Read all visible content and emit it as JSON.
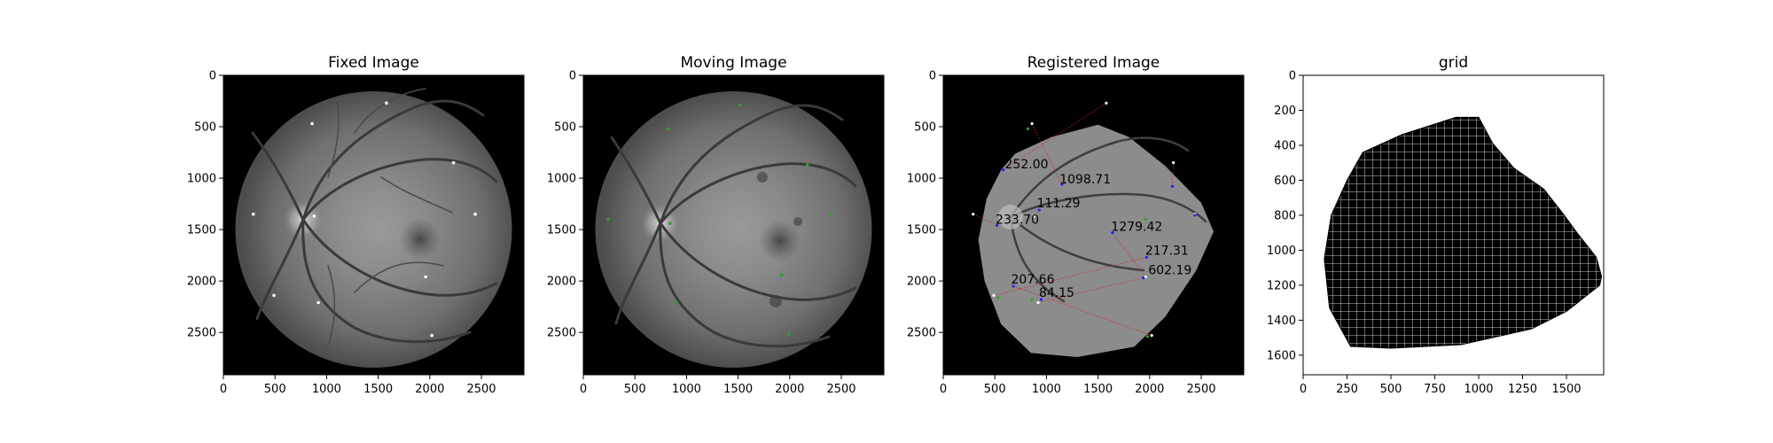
{
  "chart_data": [
    {
      "type": "image",
      "title": "Fixed Image",
      "xlim": [
        0,
        2912
      ],
      "ylim": [
        2912,
        0
      ],
      "x_ticks": [
        0,
        500,
        1000,
        1500,
        2000,
        2500
      ],
      "y_ticks": [
        0,
        500,
        1000,
        1500,
        2000,
        2500
      ],
      "landmark_color": "#ffffff",
      "landmarks": [
        [
          1580,
          270
        ],
        [
          860,
          470
        ],
        [
          2230,
          850
        ],
        [
          290,
          1350
        ],
        [
          880,
          1370
        ],
        [
          2440,
          1350
        ],
        [
          1960,
          1960
        ],
        [
          490,
          2140
        ],
        [
          920,
          2210
        ],
        [
          2020,
          2530
        ]
      ]
    },
    {
      "type": "image",
      "title": "Moving Image",
      "xlim": [
        0,
        2912
      ],
      "ylim": [
        2912,
        0
      ],
      "x_ticks": [
        0,
        500,
        1000,
        1500,
        2000,
        2500
      ],
      "y_ticks": [
        0,
        500,
        1000,
        1500,
        2000,
        2500
      ],
      "landmark_color": "#2ca02c",
      "landmarks": [
        [
          1520,
          290
        ],
        [
          820,
          520
        ],
        [
          2170,
          870
        ],
        [
          240,
          1400
        ],
        [
          840,
          1440
        ],
        [
          2400,
          1350
        ],
        [
          1920,
          1940
        ],
        [
          900,
          2200
        ],
        [
          1990,
          2520
        ]
      ]
    },
    {
      "type": "image",
      "title": "Registered Image",
      "xlim": [
        0,
        2912
      ],
      "ylim": [
        2912,
        0
      ],
      "x_ticks": [
        0,
        500,
        1000,
        1500,
        2000,
        2500
      ],
      "y_ticks": [
        0,
        500,
        1000,
        1500,
        2000,
        2500
      ],
      "warped_outline": [
        [
          700,
          760
        ],
        [
          1050,
          600
        ],
        [
          1500,
          480
        ],
        [
          1800,
          600
        ],
        [
          2150,
          880
        ],
        [
          2500,
          1240
        ],
        [
          2620,
          1520
        ],
        [
          2450,
          1900
        ],
        [
          2150,
          2350
        ],
        [
          1850,
          2640
        ],
        [
          1300,
          2740
        ],
        [
          850,
          2700
        ],
        [
          560,
          2420
        ],
        [
          400,
          2000
        ],
        [
          340,
          1600
        ],
        [
          420,
          1200
        ],
        [
          560,
          920
        ]
      ],
      "fixed_landmark_color": "#ffffff",
      "registered_landmark_color": "#2222ff",
      "moved_landmark_color": "#2ca02c",
      "error_line_color": "#d62728",
      "fixed_landmarks": [
        [
          1580,
          270
        ],
        [
          860,
          470
        ],
        [
          2230,
          850
        ],
        [
          290,
          1350
        ],
        [
          880,
          1370
        ],
        [
          2440,
          1350
        ],
        [
          1960,
          1960
        ],
        [
          490,
          2140
        ],
        [
          920,
          2210
        ],
        [
          2020,
          2530
        ]
      ],
      "registered_landmarks": [
        [
          580,
          920
        ],
        [
          1150,
          1060
        ],
        [
          2220,
          1080
        ],
        [
          520,
          1460
        ],
        [
          930,
          1310
        ],
        [
          2440,
          1360
        ],
        [
          1640,
          1530
        ],
        [
          1970,
          1770
        ],
        [
          1940,
          1970
        ],
        [
          680,
          2050
        ],
        [
          950,
          2180
        ]
      ],
      "moved_landmarks": [
        [
          820,
          520
        ],
        [
          1960,
          1400
        ],
        [
          860,
          2180
        ],
        [
          530,
          2160
        ],
        [
          1980,
          2540
        ]
      ],
      "distances": [
        {
          "label": "252.00",
          "x": 580,
          "y": 920
        },
        {
          "label": "1098.71",
          "x": 1110,
          "y": 1070
        },
        {
          "label": "111.29",
          "x": 890,
          "y": 1300
        },
        {
          "label": "233.70",
          "x": 490,
          "y": 1460
        },
        {
          "label": "1279.42",
          "x": 1610,
          "y": 1530
        },
        {
          "label": "217.31",
          "x": 1940,
          "y": 1760
        },
        {
          "label": "602.19",
          "x": 1970,
          "y": 1950
        },
        {
          "label": "207.66",
          "x": 640,
          "y": 2040
        },
        {
          "label": "84.15",
          "x": 910,
          "y": 2170
        }
      ]
    },
    {
      "type": "mesh",
      "title": "grid",
      "xlim": [
        0,
        1712
      ],
      "ylim": [
        1712,
        0
      ],
      "x_ticks": [
        0,
        250,
        500,
        750,
        1000,
        1250,
        1500
      ],
      "y_ticks": [
        0,
        200,
        400,
        600,
        800,
        1000,
        1200,
        1400,
        1600
      ],
      "line_color": "#ffffff",
      "fill_color": "#000000",
      "outline": [
        [
          340,
          440
        ],
        [
          560,
          340
        ],
        [
          870,
          240
        ],
        [
          1000,
          240
        ],
        [
          1080,
          390
        ],
        [
          1200,
          530
        ],
        [
          1370,
          650
        ],
        [
          1480,
          790
        ],
        [
          1560,
          900
        ],
        [
          1670,
          1040
        ],
        [
          1700,
          1150
        ],
        [
          1690,
          1200
        ],
        [
          1500,
          1350
        ],
        [
          1300,
          1450
        ],
        [
          900,
          1540
        ],
        [
          500,
          1560
        ],
        [
          270,
          1550
        ],
        [
          150,
          1330
        ],
        [
          120,
          1050
        ],
        [
          160,
          800
        ],
        [
          250,
          600
        ]
      ]
    }
  ]
}
